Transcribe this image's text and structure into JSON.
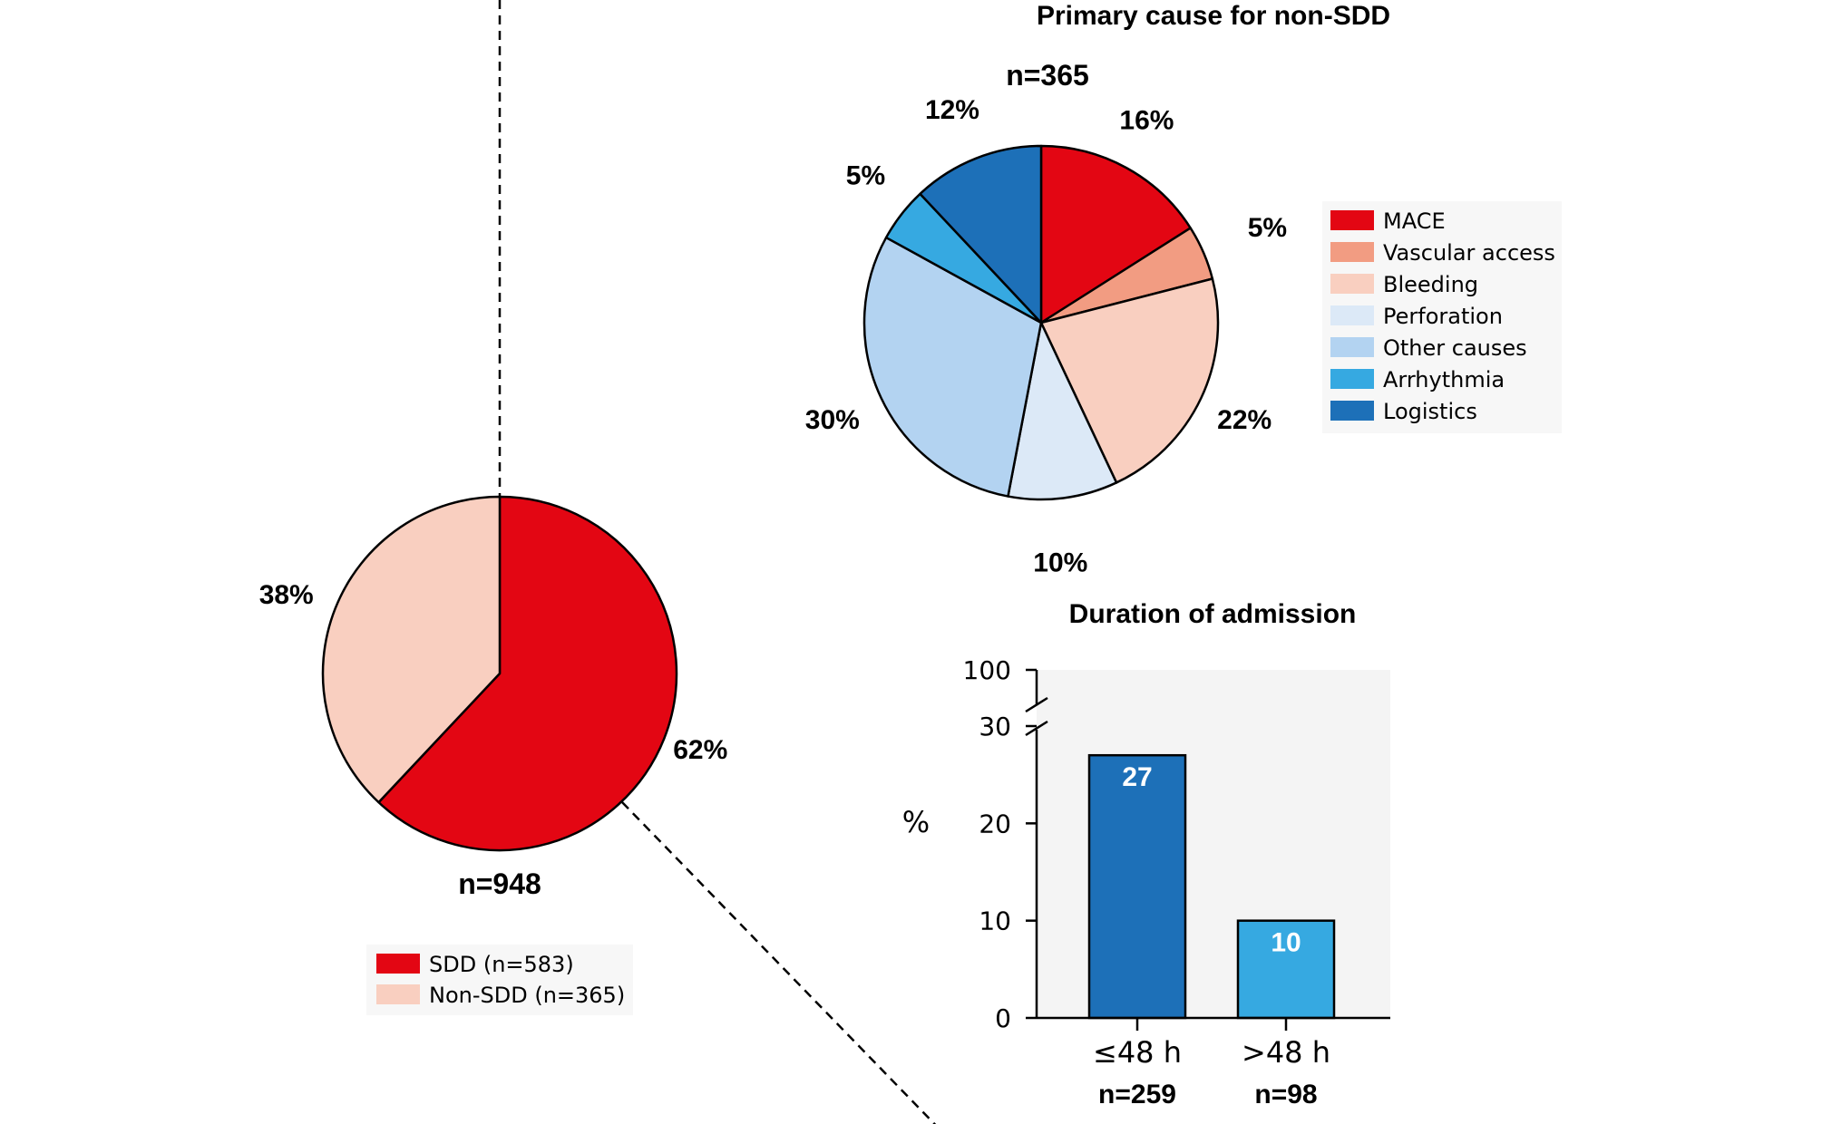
{
  "chart_data": [
    {
      "type": "pie",
      "id": "overall",
      "title": "",
      "n_label": "n=948",
      "slices": [
        {
          "name": "SDD (n=583)",
          "value": 62,
          "label": "62%",
          "color": "#e30613"
        },
        {
          "name": "Non-SDD (n=365)",
          "value": 38,
          "label": "38%",
          "color": "#f9cfc0"
        }
      ],
      "legend": {
        "placement": "bottom",
        "entries": [
          "SDD (n=583)",
          "Non-SDD (n=365)"
        ]
      }
    },
    {
      "type": "pie",
      "id": "non_sdd_causes",
      "title": "Primary cause for non-SDD",
      "n_label": "n=365",
      "slices": [
        {
          "name": "MACE",
          "value": 16,
          "label": "16%",
          "color": "#e30613"
        },
        {
          "name": "Vascular access",
          "value": 5,
          "label": "5%",
          "color": "#f29c82"
        },
        {
          "name": "Bleeding",
          "value": 22,
          "label": "22%",
          "color": "#f9cfc0"
        },
        {
          "name": "Perforation",
          "value": 10,
          "label": "10%",
          "color": "#dce9f7"
        },
        {
          "name": "Other causes",
          "value": 30,
          "label": "30%",
          "color": "#b3d3f1"
        },
        {
          "name": "Arrhythmia",
          "value": 5,
          "label": "5%",
          "color": "#36a9e1"
        },
        {
          "name": "Logistics",
          "value": 12,
          "label": "12%",
          "color": "#1d70b8"
        }
      ],
      "legend": {
        "placement": "right",
        "entries": [
          "MACE",
          "Vascular access",
          "Bleeding",
          "Perforation",
          "Other causes",
          "Arrhythmia",
          "Logistics"
        ]
      }
    },
    {
      "type": "bar",
      "id": "duration",
      "title": "Duration of admission",
      "categories": [
        "≤48 h",
        ">48 h"
      ],
      "n_labels": [
        "n=259",
        "n=98"
      ],
      "values": [
        27,
        10
      ],
      "value_labels": [
        "27",
        "10"
      ],
      "colors": [
        "#1d70b8",
        "#36a9e1"
      ],
      "ylabel": "%",
      "yticks": [
        "0",
        "10",
        "20",
        "30",
        "100"
      ],
      "ylim": [
        0,
        100
      ],
      "axis_break": [
        30,
        100
      ]
    }
  ]
}
